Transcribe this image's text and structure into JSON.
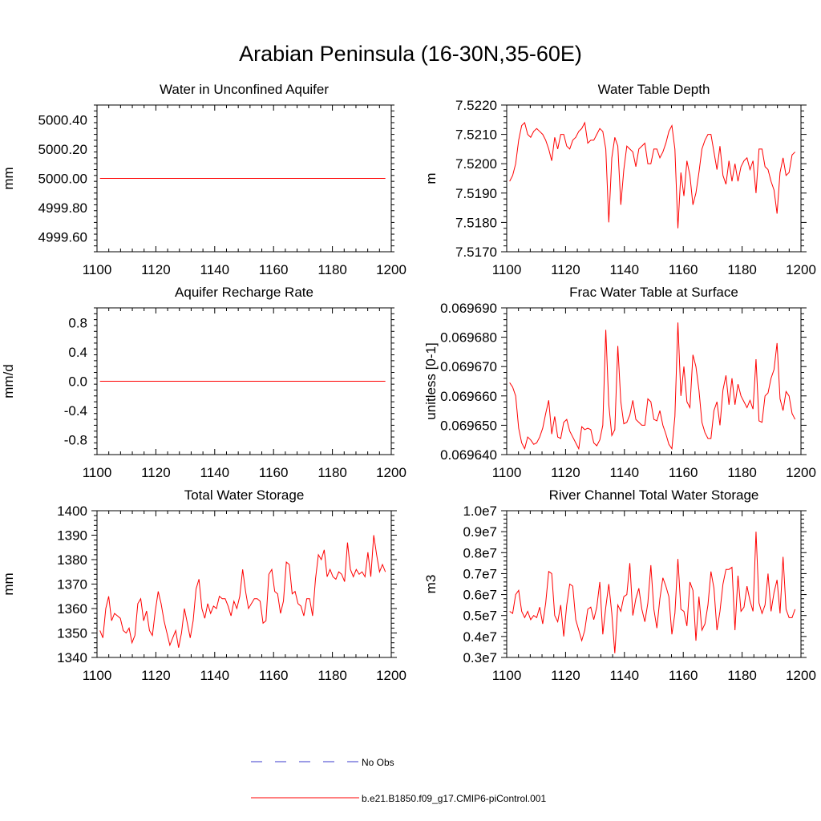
{
  "figure": {
    "title": "Arabian Peninsula (16-30N,35-60E)"
  },
  "colors": {
    "model_line": "#ff0000",
    "obs_line": "#3a3acd"
  },
  "legend": {
    "placement": "bottom-center",
    "entries": [
      {
        "label": "No Obs",
        "style": "dashed",
        "color": "#3a3acd"
      },
      {
        "label": "b.e21.B1850.f09_g17.CMIP6-piControl.001",
        "style": "solid",
        "color": "#ff0000"
      }
    ]
  },
  "chart_data": [
    {
      "type": "line",
      "title": "Water in Unconfined Aquifer",
      "ylabel": "mm",
      "xlim": [
        1100,
        1200
      ],
      "ylim": [
        4999.5,
        5000.5
      ],
      "xticks": [
        1100,
        1120,
        1140,
        1160,
        1180,
        1200
      ],
      "xtick_labels": [
        "1100",
        "1120",
        "1140",
        "1160",
        "1180",
        "1200"
      ],
      "yticks": [
        4999.6,
        4999.8,
        5000.0,
        5000.2,
        5000.4
      ],
      "ytick_labels": [
        "4999.60",
        "4999.80",
        "5000.00",
        "5000.20",
        "5000.40"
      ],
      "x_start": 1101,
      "x_end": 1198,
      "series": [
        {
          "values": [
            5000.0,
            5000.0
          ]
        }
      ]
    },
    {
      "type": "line",
      "title": "Water Table Depth",
      "ylabel": "m",
      "xlim": [
        1100,
        1200
      ],
      "ylim": [
        7.517,
        7.522
      ],
      "xticks": [
        1100,
        1120,
        1140,
        1160,
        1180,
        1200
      ],
      "xtick_labels": [
        "1100",
        "1120",
        "1140",
        "1160",
        "1180",
        "1200"
      ],
      "yticks": [
        7.517,
        7.518,
        7.519,
        7.52,
        7.521,
        7.522
      ],
      "ytick_labels": [
        "7.5170",
        "7.5180",
        "7.5190",
        "7.5200",
        "7.5210",
        "7.5220"
      ],
      "x_start": 1101,
      "x_end": 1198,
      "series": [
        {
          "values": [
            7.5194,
            7.5196,
            7.52,
            7.5208,
            7.5213,
            7.5214,
            7.521,
            7.5209,
            7.5211,
            7.5212,
            7.5211,
            7.521,
            7.5208,
            7.5205,
            7.5201,
            7.5209,
            7.5205,
            7.521,
            7.521,
            7.5206,
            7.5205,
            7.5208,
            7.5209,
            7.5211,
            7.5212,
            7.5214,
            7.5207,
            7.5208,
            7.5208,
            7.521,
            7.5212,
            7.5211,
            7.5205,
            7.518,
            7.5202,
            7.5209,
            7.5206,
            7.5186,
            7.5198,
            7.5206,
            7.5205,
            7.5204,
            7.5199,
            7.5205,
            7.5206,
            7.5207,
            7.52,
            7.52,
            7.5205,
            7.5205,
            7.5202,
            7.5204,
            7.5207,
            7.5211,
            7.5213,
            7.5205,
            7.5178,
            7.5197,
            7.5189,
            7.5201,
            7.5196,
            7.5186,
            7.519,
            7.5197,
            7.5205,
            7.5208,
            7.521,
            7.521,
            7.5204,
            7.5198,
            7.5206,
            7.5196,
            7.5193,
            7.5201,
            7.5194,
            7.52,
            7.5194,
            7.5199,
            7.5201,
            7.5202,
            7.5198,
            7.5201,
            7.519,
            7.5205,
            7.5205,
            7.5199,
            7.5198,
            7.5194,
            7.5191,
            7.5183,
            7.5197,
            7.5202,
            7.5196,
            7.5197,
            7.5203,
            7.5204
          ]
        }
      ]
    },
    {
      "type": "line",
      "title": "Aquifer Recharge Rate",
      "ylabel": "mm/d",
      "xlim": [
        1100,
        1200
      ],
      "ylim": [
        -1.0,
        1.0
      ],
      "xticks": [
        1100,
        1120,
        1140,
        1160,
        1180,
        1200
      ],
      "xtick_labels": [
        "1100",
        "1120",
        "1140",
        "1160",
        "1180",
        "1200"
      ],
      "yticks": [
        -0.8,
        -0.4,
        0.0,
        0.4,
        0.8
      ],
      "ytick_labels": [
        "-0.8",
        "-0.4",
        "0.0",
        "0.4",
        "0.8"
      ],
      "x_start": 1101,
      "x_end": 1198,
      "series": [
        {
          "values": [
            0.0,
            0.0
          ]
        }
      ]
    },
    {
      "type": "line",
      "title": "Frac Water Table at Surface",
      "ylabel": "unitless [0-1]",
      "xlim": [
        1100,
        1200
      ],
      "ylim": [
        0.06964,
        0.06969
      ],
      "xticks": [
        1100,
        1120,
        1140,
        1160,
        1180,
        1200
      ],
      "xtick_labels": [
        "1100",
        "1120",
        "1140",
        "1160",
        "1180",
        "1200"
      ],
      "yticks": [
        0.06964,
        0.06965,
        0.06966,
        0.06967,
        0.06968,
        0.06969
      ],
      "ytick_labels": [
        "0.069640",
        "0.069650",
        "0.069660",
        "0.069670",
        "0.069680",
        "0.069690"
      ],
      "x_start": 1101,
      "x_end": 1198,
      "series": [
        {
          "values": [
            0.0696645,
            0.069663,
            0.06966,
            0.069649,
            0.069644,
            0.069642,
            0.069646,
            0.069645,
            0.0696435,
            0.069644,
            0.069646,
            0.069649,
            0.069654,
            0.0696585,
            0.069647,
            0.069653,
            0.069646,
            0.0696455,
            0.069651,
            0.069652,
            0.069648,
            0.069646,
            0.069644,
            0.069642,
            0.0696495,
            0.0696485,
            0.069649,
            0.0696485,
            0.069644,
            0.069643,
            0.069645,
            0.06965,
            0.0696825,
            0.069657,
            0.0696465,
            0.0696485,
            0.069677,
            0.069658,
            0.0696505,
            0.069651,
            0.0696535,
            0.0696585,
            0.069652,
            0.069651,
            0.06965,
            0.06965,
            0.069659,
            0.069658,
            0.069652,
            0.0696515,
            0.069655,
            0.06965,
            0.069647,
            0.0696435,
            0.069642,
            0.069653,
            0.069685,
            0.06966,
            0.06967,
            0.069658,
            0.069656,
            0.069674,
            0.06967,
            0.069662,
            0.069651,
            0.0696475,
            0.0696455,
            0.0696455,
            0.069655,
            0.069658,
            0.06965,
            0.069662,
            0.069667,
            0.069657,
            0.069666,
            0.069657,
            0.069664,
            0.06966,
            0.069658,
            0.069656,
            0.0696585,
            0.0696555,
            0.0696725,
            0.0696515,
            0.069651,
            0.06966,
            0.069661,
            0.069666,
            0.069669,
            0.069678,
            0.069659,
            0.069655,
            0.0696615,
            0.06966,
            0.069654,
            0.069652
          ]
        }
      ]
    },
    {
      "type": "line",
      "title": "Total Water Storage",
      "ylabel": "mm",
      "xlim": [
        1100,
        1200
      ],
      "ylim": [
        1340,
        1400
      ],
      "xticks": [
        1100,
        1120,
        1140,
        1160,
        1180,
        1200
      ],
      "xtick_labels": [
        "1100",
        "1120",
        "1140",
        "1160",
        "1180",
        "1200"
      ],
      "yticks": [
        1340,
        1350,
        1360,
        1370,
        1380,
        1390,
        1400
      ],
      "ytick_labels": [
        "1340",
        "1350",
        "1360",
        "1370",
        "1380",
        "1390",
        "1400"
      ],
      "x_start": 1101,
      "x_end": 1198,
      "series": [
        {
          "values": [
            1351,
            1348,
            1360,
            1365,
            1355,
            1358,
            1357,
            1356,
            1351,
            1350,
            1352,
            1346,
            1349,
            1362,
            1364,
            1355,
            1359,
            1351,
            1349,
            1359,
            1367,
            1362,
            1355,
            1350,
            1345,
            1348,
            1351,
            1344,
            1350,
            1360,
            1354,
            1348,
            1355,
            1368,
            1372,
            1360,
            1356,
            1362,
            1358,
            1361,
            1360,
            1365,
            1364,
            1364,
            1361,
            1357,
            1363,
            1360,
            1365,
            1376,
            1367,
            1360,
            1362,
            1364,
            1364,
            1363,
            1354,
            1355,
            1374,
            1376,
            1367,
            1366,
            1358,
            1363,
            1379,
            1378,
            1366,
            1367,
            1362,
            1361,
            1357,
            1364,
            1364,
            1357,
            1372,
            1382,
            1380,
            1384,
            1373,
            1376,
            1373,
            1372,
            1375,
            1374,
            1371,
            1387,
            1376,
            1373,
            1376,
            1374,
            1375,
            1373,
            1383,
            1373,
            1390,
            1382,
            1375,
            1378,
            1375
          ]
        }
      ]
    },
    {
      "type": "line",
      "title": "River Channel Total Water Storage",
      "ylabel": "m3",
      "xlim": [
        1100,
        1200
      ],
      "ylim": [
        3000000,
        10000000
      ],
      "xticks": [
        1100,
        1120,
        1140,
        1160,
        1180,
        1200
      ],
      "xtick_labels": [
        "1100",
        "1120",
        "1140",
        "1160",
        "1180",
        "1200"
      ],
      "yticks": [
        3000000,
        4000000,
        5000000,
        6000000,
        7000000,
        8000000,
        9000000,
        10000000
      ],
      "ytick_labels": [
        "0.3e7",
        "0.4e7",
        "0.5e7",
        "0.6e7",
        "0.7e7",
        "0.8e7",
        "0.9e7",
        "1.0e7"
      ],
      "x_start": 1101,
      "x_end": 1198,
      "series": [
        {
          "values": [
            5200000,
            5100000,
            6000000,
            6200000,
            5200000,
            4900000,
            5200000,
            4800000,
            5000000,
            4900000,
            5400000,
            4600000,
            5600000,
            7100000,
            7000000,
            5000000,
            4700000,
            5500000,
            4000000,
            5500000,
            6500000,
            6400000,
            4800000,
            4300000,
            3800000,
            4300000,
            5300000,
            5400000,
            4800000,
            5400000,
            6600000,
            4100000,
            5400000,
            6500000,
            5100000,
            3200000,
            5500000,
            5200000,
            5900000,
            6000000,
            7500000,
            5000000,
            5800000,
            6300000,
            5300000,
            4700000,
            5600000,
            7400000,
            5300000,
            4400000,
            5800000,
            6800000,
            6400000,
            5900000,
            4100000,
            5100000,
            7700000,
            5300000,
            5200000,
            4500000,
            6600000,
            6200000,
            3800000,
            5900000,
            4300000,
            4600000,
            5500000,
            7100000,
            6300000,
            4300000,
            5200000,
            6500000,
            7200000,
            7200000,
            7300000,
            4300000,
            6900000,
            5200000,
            5400000,
            6400000,
            5700000,
            5200000,
            9000000,
            5600000,
            5100000,
            5500000,
            7000000,
            5200000,
            6100000,
            6700000,
            5100000,
            7800000,
            5300000,
            4900000,
            4900000,
            5300000
          ]
        }
      ]
    }
  ]
}
